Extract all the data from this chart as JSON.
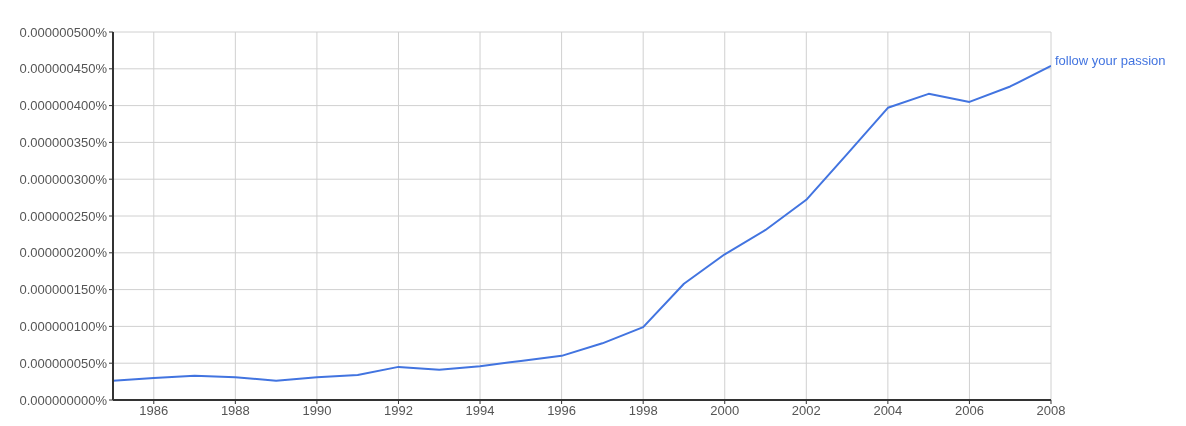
{
  "chart_data": {
    "type": "line",
    "x": [
      1985,
      1986,
      1987,
      1988,
      1989,
      1990,
      1991,
      1992,
      1993,
      1994,
      1995,
      1996,
      1997,
      1998,
      1999,
      2000,
      2001,
      2002,
      2003,
      2004,
      2005,
      2006,
      2007,
      2008
    ],
    "series": [
      {
        "name": "follow your passion",
        "color": "#4274e0",
        "values": [
          2.6e-08,
          3e-08,
          3.3e-08,
          3.1e-08,
          2.6e-08,
          3.1e-08,
          3.4e-08,
          4.5e-08,
          4.1e-08,
          4.6e-08,
          5.3e-08,
          6e-08,
          7.7e-08,
          9.9e-08,
          1.58e-07,
          1.98e-07,
          2.31e-07,
          2.72e-07,
          3.34e-07,
          3.97e-07,
          4.16e-07,
          4.05e-07,
          4.26e-07,
          4.54e-07
        ]
      }
    ],
    "xlim": [
      1985,
      2008
    ],
    "xticks": [
      1986,
      1988,
      1990,
      1992,
      1994,
      1996,
      1998,
      2000,
      2002,
      2004,
      2006,
      2008
    ],
    "ylim": [
      0,
      5e-07
    ],
    "yticks": [
      {
        "value": 0,
        "label": "0.000000000%"
      },
      {
        "value": 5e-08,
        "label": "0.000000050%"
      },
      {
        "value": 1e-07,
        "label": "0.000000100%"
      },
      {
        "value": 1.5e-07,
        "label": "0.000000150%"
      },
      {
        "value": 2e-07,
        "label": "0.000000200%"
      },
      {
        "value": 2.5e-07,
        "label": "0.000000250%"
      },
      {
        "value": 3e-07,
        "label": "0.000000300%"
      },
      {
        "value": 3.5e-07,
        "label": "0.000000350%"
      },
      {
        "value": 4e-07,
        "label": "0.000000400%"
      },
      {
        "value": 4.5e-07,
        "label": "0.000000450%"
      },
      {
        "value": 5e-07,
        "label": "0.000000500%"
      }
    ],
    "grid": true,
    "legend": false,
    "marker": "none",
    "line_style": "solid"
  }
}
